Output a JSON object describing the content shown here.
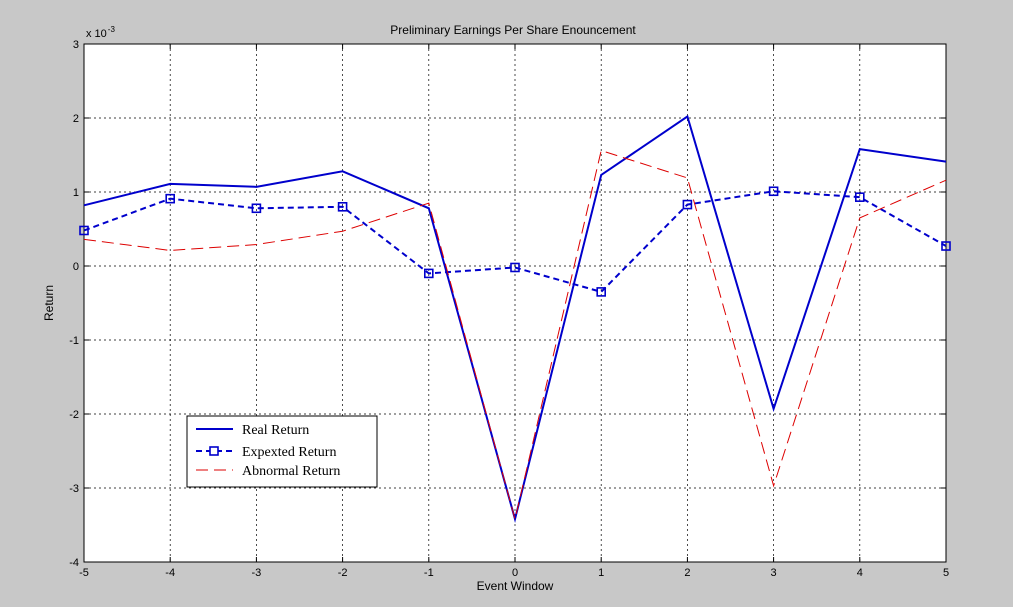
{
  "chart_data": {
    "type": "line",
    "title": "Preliminary Earnings Per Share Enouncement",
    "xlabel": "Event Window",
    "ylabel": "Return",
    "y_exponent_label": "x 10",
    "y_exponent_power": "-3",
    "xlim": [
      -5,
      5
    ],
    "ylim": [
      -4,
      3
    ],
    "x": [
      -5,
      -4,
      -3,
      -2,
      -1,
      0,
      1,
      2,
      3,
      4,
      5
    ],
    "x_ticks": [
      "-5",
      "-4",
      "-3",
      "-2",
      "-1",
      "0",
      "1",
      "2",
      "3",
      "4",
      "5"
    ],
    "y_ticks": [
      "-4",
      "-3",
      "-2",
      "-1",
      "0",
      "1",
      "2",
      "3"
    ],
    "grid": true,
    "legend_position": "lower-left",
    "series": [
      {
        "name": "Real Return",
        "color": "#0000cc",
        "style": "solid",
        "marker": "none",
        "values": [
          0.82,
          1.11,
          1.07,
          1.28,
          0.78,
          -3.42,
          1.23,
          2.02,
          -1.93,
          1.58,
          1.41
        ]
      },
      {
        "name": "Expexted Return",
        "color": "#0000cc",
        "style": "dashed",
        "marker": "square",
        "values": [
          0.48,
          0.91,
          0.78,
          0.8,
          -0.1,
          -0.02,
          -0.35,
          0.83,
          1.01,
          0.93,
          0.27
        ]
      },
      {
        "name": "Abnormal Return",
        "color": "#dd0000",
        "style": "longdash",
        "marker": "none",
        "values": [
          0.36,
          0.21,
          0.29,
          0.47,
          0.85,
          -3.42,
          1.56,
          1.19,
          -2.97,
          0.65,
          1.16
        ]
      }
    ]
  }
}
